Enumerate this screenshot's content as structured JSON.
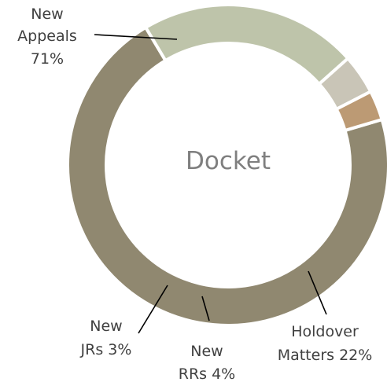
{
  "chart_data": {
    "type": "pie",
    "title": "Docket",
    "categories": [
      "New Appeals",
      "Holdover Matters",
      "New RRs",
      "New JRs"
    ],
    "values": [
      71,
      22,
      4,
      3
    ],
    "units": "%",
    "data_labels": [
      {
        "name_lines": [
          "New",
          "Appeals"
        ],
        "value_text": "71%"
      },
      {
        "name_lines": [
          "Holdover",
          "Matters"
        ],
        "value_text": "22%"
      },
      {
        "name_lines": [
          "New",
          "RRs"
        ],
        "value_text": "4%"
      },
      {
        "name_lines": [
          "New",
          "JRs"
        ],
        "value_text": "3%"
      }
    ],
    "colors": [
      "#908870",
      "#bec4aa",
      "#c9c5b7",
      "#bc9a74"
    ],
    "legend": "none",
    "donut": true
  }
}
